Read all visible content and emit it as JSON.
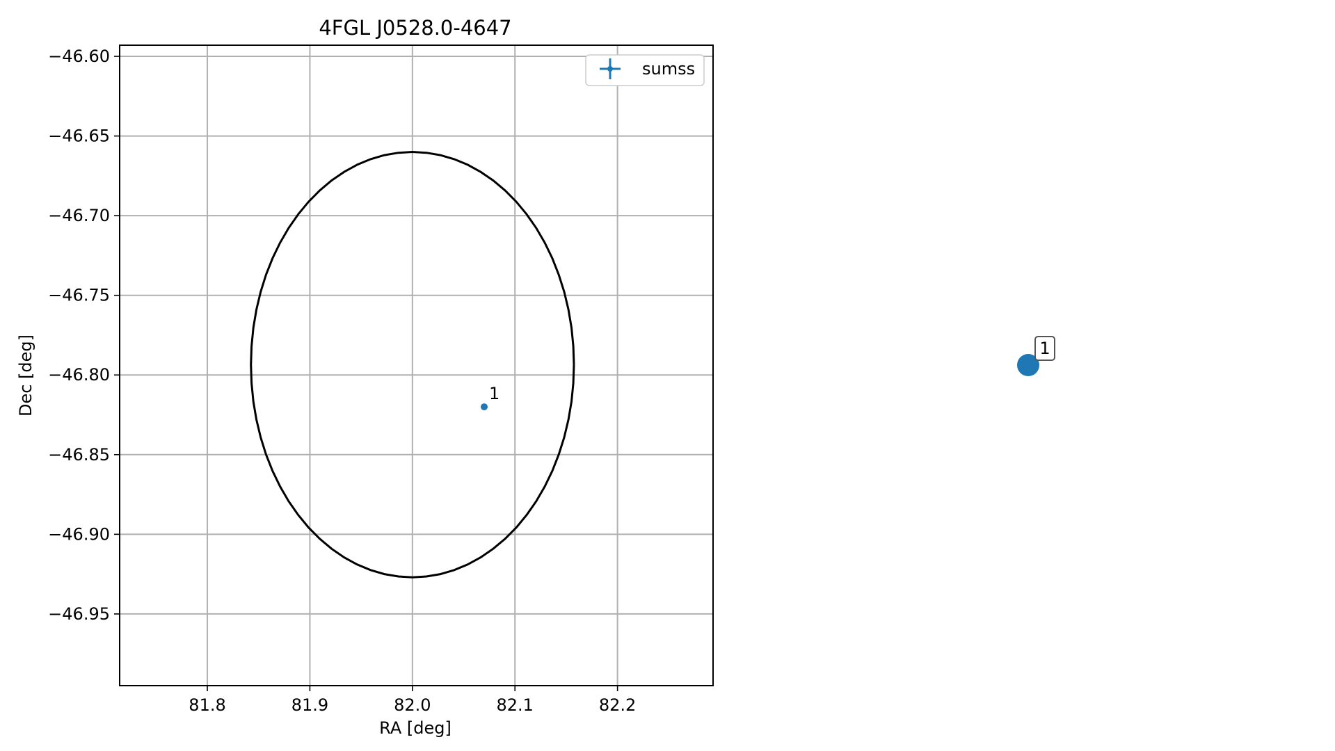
{
  "chart_data": {
    "type": "scatter",
    "title": "4FGL J0528.0-4647",
    "xlabel": "RA [deg]",
    "ylabel": "Dec [deg]",
    "xlim": [
      81.7145,
      82.2932
    ],
    "ylim": [
      -46.995,
      -46.593
    ],
    "xticks": [
      81.8,
      81.9,
      82.0,
      82.1,
      82.2
    ],
    "xtick_labels": [
      "81.8",
      "81.9",
      "82.0",
      "82.1",
      "82.2"
    ],
    "yticks": [
      -46.6,
      -46.65,
      -46.7,
      -46.75,
      -46.8,
      -46.85,
      -46.9,
      -46.95
    ],
    "ytick_labels": [
      "−46.60",
      "−46.65",
      "−46.70",
      "−46.75",
      "−46.80",
      "−46.85",
      "−46.90",
      "−46.95"
    ],
    "grid": true,
    "legend": {
      "placement": "top-right",
      "entries": [
        "sumss"
      ]
    },
    "ellipse": {
      "center": [
        82.0,
        -46.7935
      ],
      "ra_semi_axis": 0.1575,
      "dec_semi_axis": 0.1335
    },
    "series": [
      {
        "name": "sumss",
        "color": "#1f77b4",
        "points": [
          {
            "x": 82.07,
            "y": -46.82,
            "label": "1"
          }
        ]
      }
    ]
  },
  "inset": {
    "marker_label": "1",
    "marker_color": "#1f77b4"
  }
}
